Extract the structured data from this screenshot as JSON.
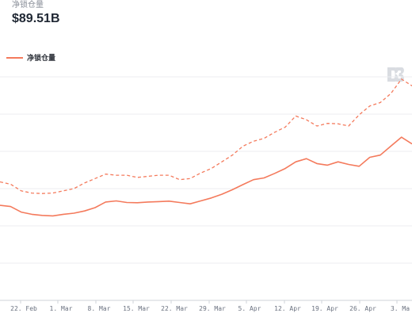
{
  "header": {
    "metric_label": "净锁仓量",
    "metric_value": "$89.51B"
  },
  "legend": {
    "label": "净锁仓量"
  },
  "colors": {
    "series": "#f47a5c",
    "grid": "#eceef1",
    "text": "#1f2733"
  },
  "logo": {
    "icon": "defillama-logo-icon"
  },
  "chart_data": {
    "type": "line",
    "title": "",
    "xlabel": "",
    "ylabel": "",
    "grid": "horizontal",
    "legend_placement": "top-left",
    "x_ticks": [
      "22. Feb",
      "1. Mar",
      "8. Mar",
      "15. Mar",
      "22. Mar",
      "29. Mar",
      "5. Apr",
      "12. Apr",
      "19. Apr",
      "26. Apr",
      "3. Ma"
    ],
    "x": [
      "Feb 18",
      "Feb 20",
      "Feb 22",
      "Feb 24",
      "Feb 26",
      "Feb 28",
      "Mar 2",
      "Mar 4",
      "Mar 6",
      "Mar 8",
      "Mar 10",
      "Mar 12",
      "Mar 14",
      "Mar 16",
      "Mar 18",
      "Mar 20",
      "Mar 22",
      "Mar 24",
      "Mar 26",
      "Mar 28",
      "Mar 30",
      "Apr 1",
      "Apr 3",
      "Apr 5",
      "Apr 7",
      "Apr 9",
      "Apr 11",
      "Apr 13",
      "Apr 15",
      "Apr 17",
      "Apr 19",
      "Apr 21",
      "Apr 23",
      "Apr 25",
      "Apr 27",
      "Apr 29",
      "May 1",
      "May 3",
      "May 4",
      "May 5"
    ],
    "series": [
      {
        "name": "净锁仓量",
        "style": "solid",
        "values": [
          0.425,
          0.42,
          0.395,
          0.385,
          0.38,
          0.378,
          0.385,
          0.39,
          0.4,
          0.415,
          0.44,
          0.445,
          0.438,
          0.437,
          0.44,
          0.442,
          0.444,
          0.438,
          0.432,
          0.445,
          0.458,
          0.475,
          0.495,
          0.518,
          0.54,
          0.548,
          0.568,
          0.59,
          0.62,
          0.634,
          0.612,
          0.605,
          0.62,
          0.608,
          0.6,
          0.64,
          0.65,
          0.69,
          0.73,
          0.7
        ]
      },
      {
        "style": "dashed",
        "values": [
          0.53,
          0.52,
          0.49,
          0.48,
          0.478,
          0.48,
          0.49,
          0.5,
          0.525,
          0.545,
          0.565,
          0.56,
          0.56,
          0.55,
          0.555,
          0.56,
          0.56,
          0.54,
          0.545,
          0.57,
          0.59,
          0.62,
          0.65,
          0.69,
          0.712,
          0.725,
          0.752,
          0.775,
          0.825,
          0.808,
          0.78,
          0.792,
          0.79,
          0.78,
          0.83,
          0.87,
          0.885,
          0.925,
          0.99,
          0.96
        ]
      }
    ]
  }
}
